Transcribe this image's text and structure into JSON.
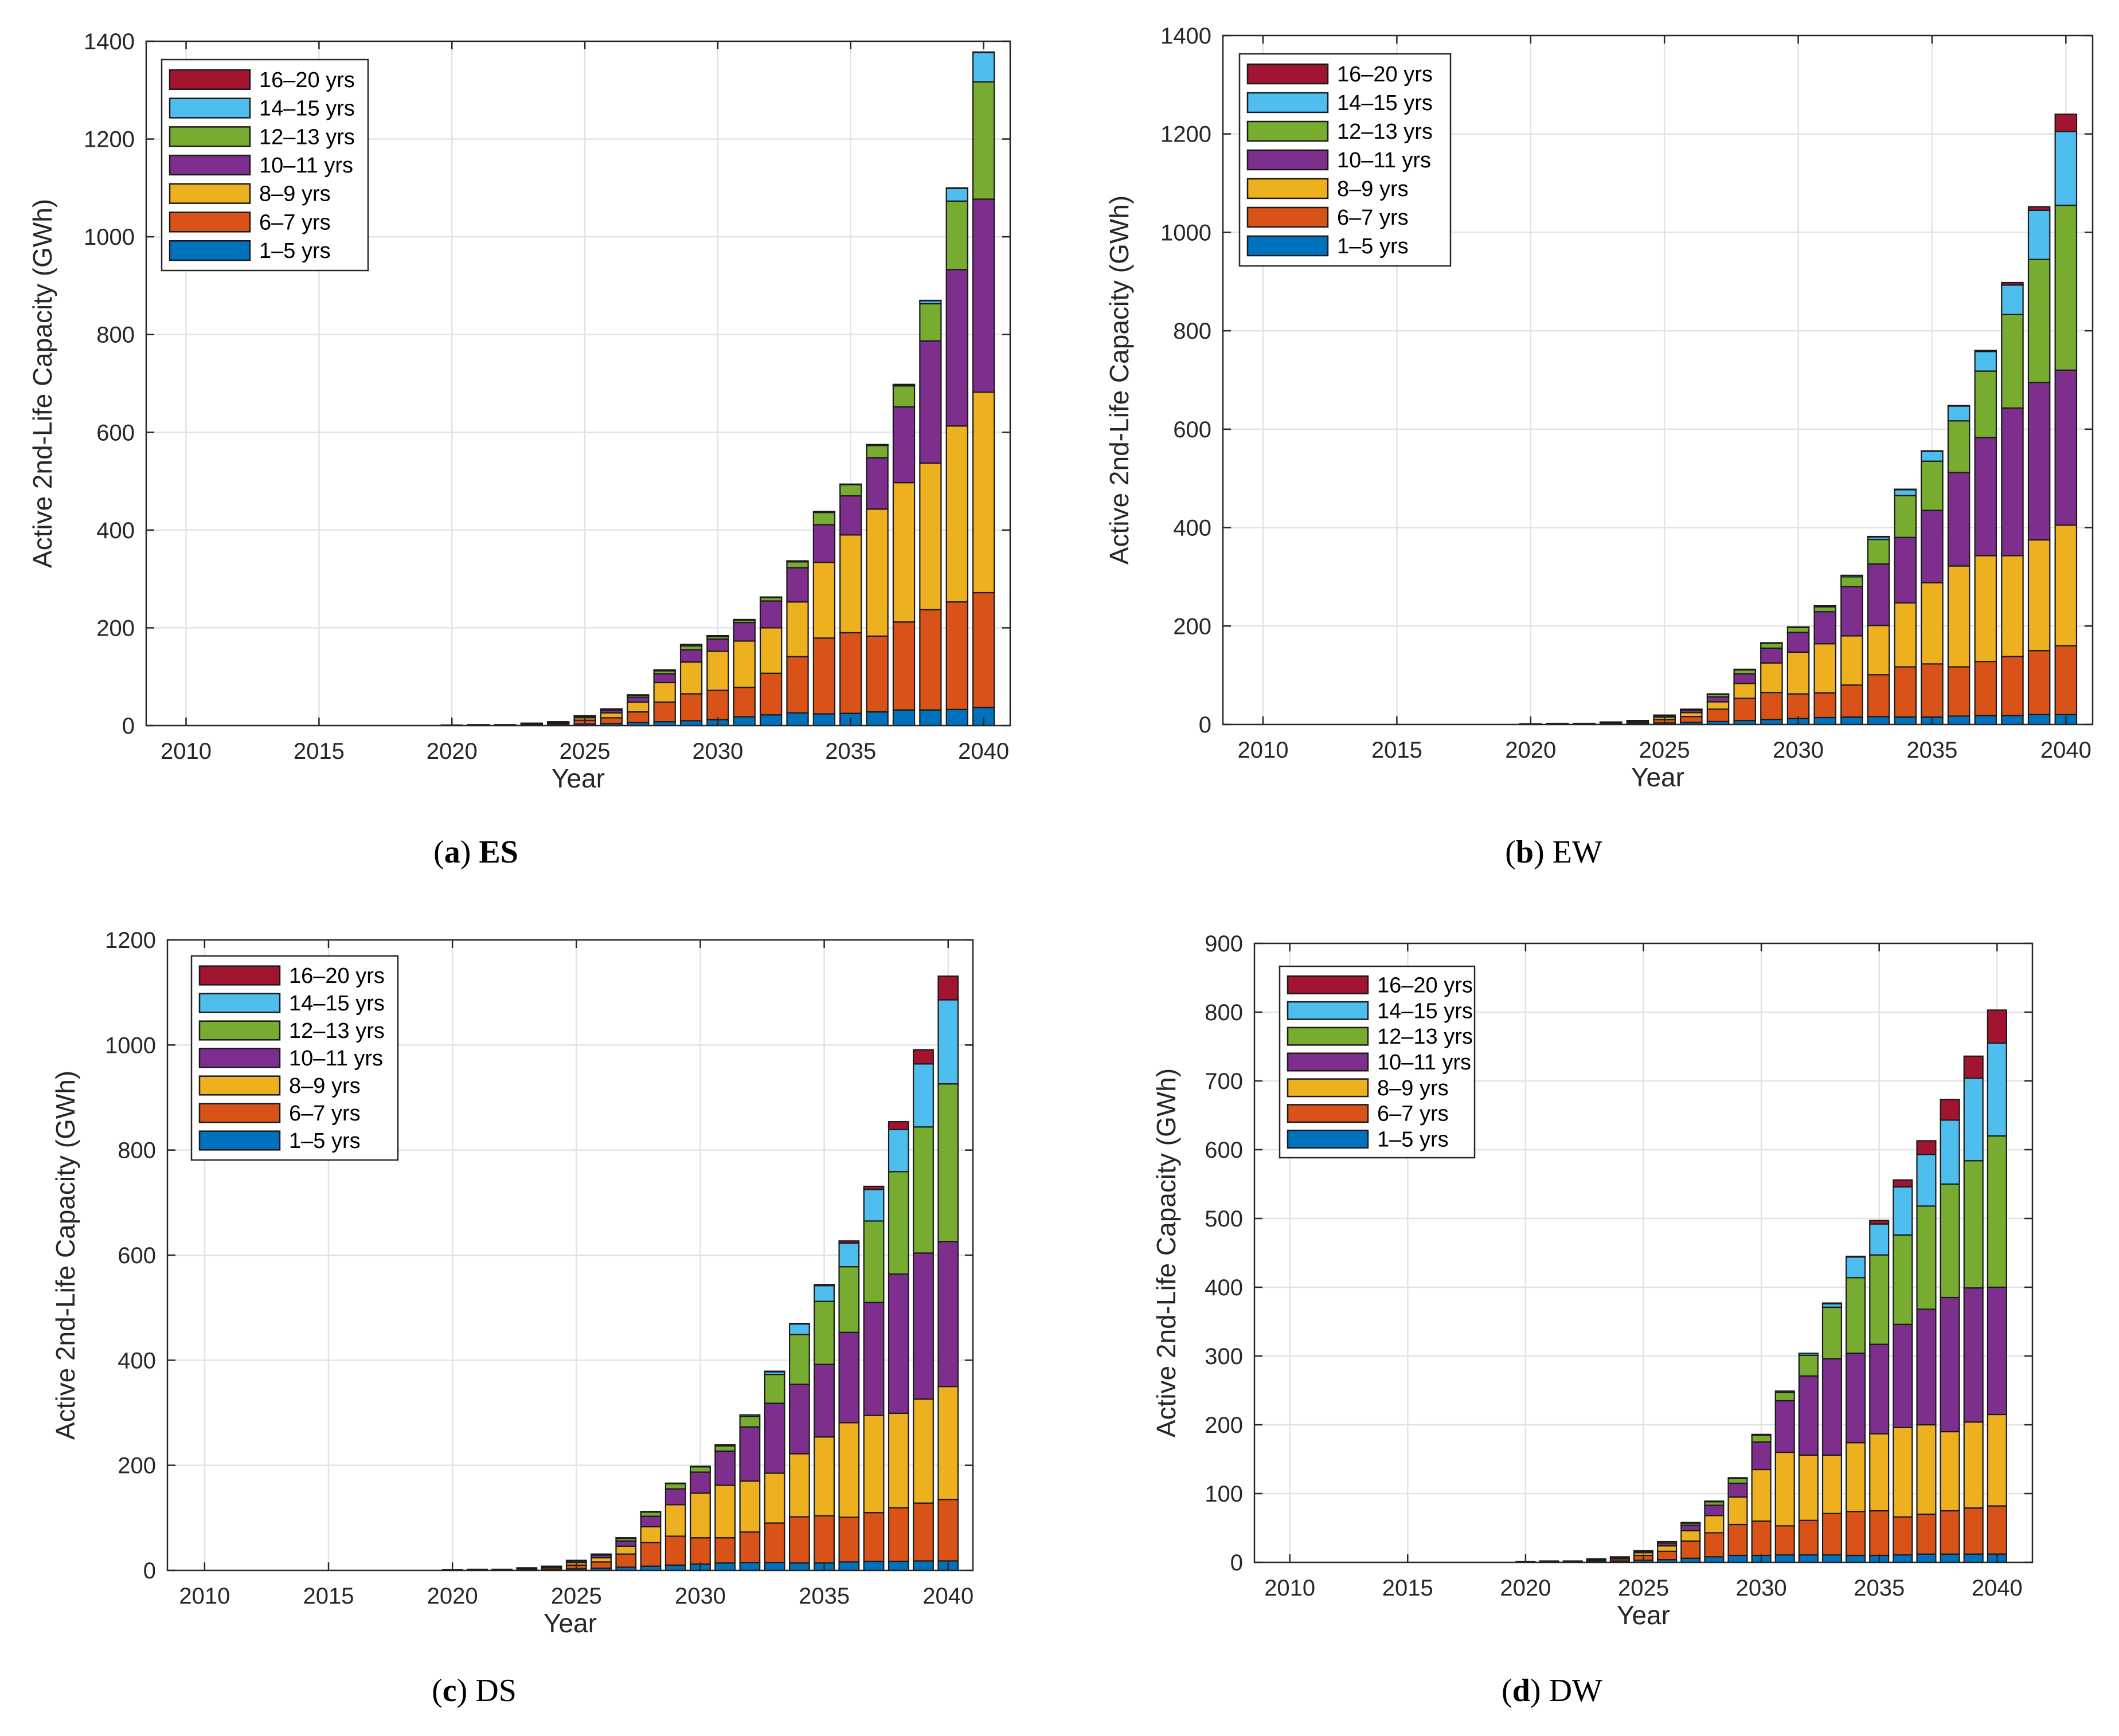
{
  "colors": {
    "s1": "#0072BD",
    "s2": "#D95319",
    "s3": "#EDB120",
    "s4": "#7E2F8E",
    "s5": "#77AC30",
    "s6": "#4DBEEE",
    "s7": "#A2142F"
  },
  "chart_data": [
    {
      "type": "bar",
      "stacked": true,
      "panel": "a",
      "caption_label": "a",
      "caption_name": "ES",
      "title": "",
      "xlabel": "Year",
      "ylabel": "Active 2nd-Life Capacity (GWh)",
      "xlim": [
        2008.5,
        2041
      ],
      "ylim": [
        0,
        1400
      ],
      "yticks": [
        0,
        200,
        400,
        600,
        800,
        1000,
        1200,
        1400
      ],
      "xticks": [
        2010,
        2015,
        2020,
        2025,
        2030,
        2035,
        2040
      ],
      "grid": true,
      "legend_position": "top-left",
      "legend": [
        "16–20 yrs",
        "14–15 yrs",
        "12–13 yrs",
        "10–11 yrs",
        "8–9 yrs",
        "6–7 yrs",
        "1–5 yrs"
      ],
      "categories": [
        2018,
        2019,
        2020,
        2021,
        2022,
        2023,
        2024,
        2025,
        2026,
        2027,
        2028,
        2029,
        2030,
        2031,
        2032,
        2033,
        2034,
        2035,
        2036,
        2037,
        2038,
        2039,
        2040
      ],
      "series": [
        {
          "name": "1–5 yrs",
          "color_key": "s1",
          "values": [
            0,
            0,
            1,
            1,
            1,
            2,
            2,
            3,
            4,
            6,
            8,
            10,
            12,
            18,
            22,
            26,
            24,
            25,
            28,
            32,
            32,
            33,
            37
          ]
        },
        {
          "name": "6–7 yrs",
          "color_key": "s2",
          "values": [
            0,
            0,
            0,
            1,
            1,
            2,
            3,
            8,
            12,
            22,
            40,
            55,
            60,
            60,
            85,
            115,
            155,
            165,
            155,
            180,
            205,
            220,
            235
          ]
        },
        {
          "name": "8–9 yrs",
          "color_key": "s3",
          "values": [
            0,
            0,
            0,
            0,
            0,
            1,
            2,
            5,
            10,
            20,
            40,
            65,
            80,
            95,
            93,
            112,
            155,
            200,
            260,
            285,
            300,
            360,
            410
          ]
        },
        {
          "name": "10–11 yrs",
          "color_key": "s4",
          "values": [
            0,
            0,
            0,
            0,
            0,
            0,
            1,
            3,
            6,
            10,
            18,
            25,
            25,
            38,
            55,
            70,
            77,
            80,
            105,
            155,
            250,
            320,
            395
          ]
        },
        {
          "name": "12–13 yrs",
          "color_key": "s5",
          "values": [
            0,
            0,
            0,
            0,
            0,
            0,
            0,
            1,
            2,
            4,
            6,
            8,
            5,
            5,
            7,
            12,
            25,
            23,
            25,
            43,
            76,
            140,
            240
          ]
        },
        {
          "name": "14–15 yrs",
          "color_key": "s6",
          "values": [
            0,
            0,
            0,
            0,
            0,
            0,
            0,
            0,
            0,
            1,
            2,
            3,
            2,
            1,
            1,
            2,
            2,
            1,
            1,
            2,
            6,
            26,
            60
          ]
        },
        {
          "name": "16–20 yrs",
          "color_key": "s7",
          "values": [
            0,
            0,
            0,
            0,
            0,
            0,
            0,
            0,
            0,
            0,
            0,
            0,
            0,
            0,
            0,
            0,
            0,
            0,
            1,
            1,
            1,
            1,
            1
          ]
        }
      ]
    },
    {
      "type": "bar",
      "stacked": true,
      "panel": "b",
      "caption_label": "b",
      "caption_name": "EW",
      "title": "",
      "xlabel": "Year",
      "ylabel": "Active 2nd-Life Capacity (GWh)",
      "xlim": [
        2008.5,
        2041
      ],
      "ylim": [
        0,
        1400
      ],
      "yticks": [
        0,
        200,
        400,
        600,
        800,
        1000,
        1200,
        1400
      ],
      "xticks": [
        2010,
        2015,
        2020,
        2025,
        2030,
        2035,
        2040
      ],
      "grid": true,
      "legend_position": "top-left",
      "legend": [
        "16–20 yrs",
        "14–15 yrs",
        "12–13 yrs",
        "10–11 yrs",
        "8–9 yrs",
        "6–7 yrs",
        "1–5 yrs"
      ],
      "categories": [
        2018,
        2019,
        2020,
        2021,
        2022,
        2023,
        2024,
        2025,
        2026,
        2027,
        2028,
        2029,
        2030,
        2031,
        2032,
        2033,
        2034,
        2035,
        2036,
        2037,
        2038,
        2039,
        2040
      ],
      "series": [
        {
          "name": "1–5 yrs",
          "color_key": "s1",
          "values": [
            0,
            0,
            1,
            1,
            1,
            2,
            2,
            3,
            4,
            6,
            8,
            10,
            12,
            14,
            15,
            16,
            15,
            15,
            17,
            18,
            18,
            20,
            20
          ]
        },
        {
          "name": "6–7 yrs",
          "color_key": "s2",
          "values": [
            0,
            0,
            0,
            1,
            1,
            2,
            3,
            7,
            12,
            25,
            45,
            55,
            50,
            50,
            65,
            85,
            102,
            108,
            100,
            110,
            120,
            130,
            140
          ]
        },
        {
          "name": "8–9 yrs",
          "color_key": "s3",
          "values": [
            0,
            0,
            0,
            0,
            0,
            1,
            2,
            5,
            8,
            15,
            30,
            60,
            85,
            100,
            100,
            100,
            130,
            165,
            205,
            215,
            205,
            225,
            245
          ]
        },
        {
          "name": "10–11 yrs",
          "color_key": "s4",
          "values": [
            0,
            0,
            0,
            0,
            0,
            0,
            1,
            3,
            5,
            10,
            20,
            30,
            40,
            65,
            100,
            125,
            133,
            147,
            190,
            240,
            300,
            320,
            315
          ]
        },
        {
          "name": "12–13 yrs",
          "color_key": "s5",
          "values": [
            0,
            0,
            0,
            0,
            0,
            0,
            0,
            1,
            2,
            5,
            8,
            10,
            10,
            10,
            20,
            50,
            85,
            100,
            105,
            135,
            190,
            250,
            335
          ]
        },
        {
          "name": "14–15 yrs",
          "color_key": "s6",
          "values": [
            0,
            0,
            0,
            0,
            0,
            0,
            0,
            0,
            0,
            1,
            1,
            1,
            1,
            2,
            3,
            5,
            12,
            20,
            30,
            40,
            60,
            100,
            150
          ]
        },
        {
          "name": "16–20 yrs",
          "color_key": "s7",
          "values": [
            0,
            0,
            0,
            0,
            0,
            0,
            0,
            0,
            0,
            0,
            0,
            0,
            0,
            0,
            0,
            1,
            1,
            1,
            1,
            2,
            5,
            7,
            35
          ]
        }
      ]
    },
    {
      "type": "bar",
      "stacked": true,
      "panel": "c",
      "caption_label": "c",
      "caption_name": "DS",
      "title": "",
      "xlabel": "Year",
      "ylabel": "Active 2nd-Life Capacity (GWh)",
      "xlim": [
        2008.5,
        2041
      ],
      "ylim": [
        0,
        1200
      ],
      "yticks": [
        0,
        200,
        400,
        600,
        800,
        1000,
        1200
      ],
      "xticks": [
        2010,
        2015,
        2020,
        2025,
        2030,
        2035,
        2040
      ],
      "grid": true,
      "legend_position": "top-left",
      "legend": [
        "16–20 yrs",
        "14–15 yrs",
        "12–13 yrs",
        "10–11 yrs",
        "8–9 yrs",
        "6–7 yrs",
        "1–5 yrs"
      ],
      "categories": [
        2018,
        2019,
        2020,
        2021,
        2022,
        2023,
        2024,
        2025,
        2026,
        2027,
        2028,
        2029,
        2030,
        2031,
        2032,
        2033,
        2034,
        2035,
        2036,
        2037,
        2038,
        2039,
        2040
      ],
      "series": [
        {
          "name": "1–5 yrs",
          "color_key": "s1",
          "values": [
            0,
            0,
            1,
            1,
            1,
            2,
            2,
            3,
            4,
            6,
            8,
            10,
            12,
            14,
            15,
            15,
            14,
            14,
            16,
            17,
            17,
            18,
            18
          ]
        },
        {
          "name": "6–7 yrs",
          "color_key": "s2",
          "values": [
            0,
            0,
            0,
            1,
            1,
            2,
            3,
            7,
            12,
            25,
            45,
            55,
            50,
            48,
            58,
            75,
            88,
            90,
            85,
            93,
            102,
            110,
            117
          ]
        },
        {
          "name": "8–9 yrs",
          "color_key": "s3",
          "values": [
            0,
            0,
            0,
            0,
            0,
            1,
            2,
            5,
            8,
            15,
            30,
            60,
            85,
            100,
            97,
            95,
            120,
            150,
            180,
            185,
            180,
            198,
            215
          ]
        },
        {
          "name": "10–11 yrs",
          "color_key": "s4",
          "values": [
            0,
            0,
            0,
            0,
            0,
            0,
            1,
            3,
            5,
            10,
            20,
            30,
            40,
            65,
            103,
            133,
            132,
            138,
            172,
            215,
            265,
            278,
            276
          ]
        },
        {
          "name": "12–13 yrs",
          "color_key": "s5",
          "values": [
            0,
            0,
            0,
            0,
            0,
            0,
            0,
            1,
            2,
            5,
            8,
            10,
            10,
            10,
            20,
            55,
            95,
            120,
            125,
            155,
            195,
            240,
            300
          ]
        },
        {
          "name": "14–15 yrs",
          "color_key": "s6",
          "values": [
            0,
            0,
            0,
            0,
            0,
            0,
            0,
            0,
            0,
            1,
            1,
            1,
            1,
            2,
            3,
            5,
            20,
            30,
            45,
            60,
            80,
            120,
            160
          ]
        },
        {
          "name": "16–20 yrs",
          "color_key": "s7",
          "values": [
            0,
            0,
            0,
            0,
            0,
            0,
            0,
            0,
            0,
            0,
            0,
            0,
            0,
            0,
            0,
            1,
            1,
            2,
            4,
            6,
            15,
            27,
            45
          ]
        }
      ]
    },
    {
      "type": "bar",
      "stacked": true,
      "panel": "d",
      "caption_label": "d",
      "caption_name": "DW",
      "title": "",
      "xlabel": "Year",
      "ylabel": "Active 2nd-Life Capacity (GWh)",
      "xlim": [
        2008.5,
        2041.5
      ],
      "ylim": [
        0,
        900
      ],
      "yticks": [
        0,
        100,
        200,
        300,
        400,
        500,
        600,
        700,
        800,
        900
      ],
      "xticks": [
        2010,
        2015,
        2020,
        2025,
        2030,
        2035,
        2040
      ],
      "grid": true,
      "legend_position": "top-left",
      "legend": [
        "16–20 yrs",
        "14–15 yrs",
        "12–13 yrs",
        "10–11 yrs",
        "8–9 yrs",
        "6–7 yrs",
        "1–5 yrs"
      ],
      "categories": [
        2018,
        2019,
        2020,
        2021,
        2022,
        2023,
        2024,
        2025,
        2026,
        2027,
        2028,
        2029,
        2030,
        2031,
        2032,
        2033,
        2034,
        2035,
        2036,
        2037,
        2038,
        2039,
        2040
      ],
      "series": [
        {
          "name": "1–5 yrs",
          "color_key": "s1",
          "values": [
            0,
            0,
            1,
            1,
            1,
            2,
            2,
            3,
            4,
            6,
            8,
            10,
            10,
            11,
            11,
            11,
            10,
            10,
            11,
            12,
            12,
            12,
            12
          ]
        },
        {
          "name": "6–7 yrs",
          "color_key": "s2",
          "values": [
            0,
            0,
            0,
            1,
            1,
            2,
            3,
            7,
            12,
            25,
            35,
            45,
            50,
            42,
            50,
            60,
            64,
            65,
            55,
            58,
            63,
            67,
            70
          ]
        },
        {
          "name": "8–9 yrs",
          "color_key": "s3",
          "values": [
            0,
            0,
            0,
            0,
            0,
            1,
            2,
            4,
            8,
            15,
            25,
            40,
            75,
            107,
            95,
            85,
            100,
            112,
            130,
            130,
            115,
            125,
            133
          ]
        },
        {
          "name": "10–11 yrs",
          "color_key": "s4",
          "values": [
            0,
            0,
            0,
            0,
            0,
            0,
            1,
            2,
            4,
            8,
            15,
            20,
            40,
            75,
            115,
            140,
            130,
            130,
            150,
            168,
            195,
            195,
            185
          ]
        },
        {
          "name": "12–13 yrs",
          "color_key": "s5",
          "values": [
            0,
            0,
            0,
            0,
            0,
            0,
            0,
            1,
            2,
            3,
            5,
            7,
            10,
            12,
            30,
            75,
            110,
            130,
            130,
            150,
            165,
            185,
            220
          ]
        },
        {
          "name": "14–15 yrs",
          "color_key": "s6",
          "values": [
            0,
            0,
            0,
            0,
            0,
            0,
            0,
            0,
            0,
            1,
            1,
            1,
            1,
            2,
            3,
            5,
            30,
            45,
            70,
            75,
            93,
            120,
            135
          ]
        },
        {
          "name": "16–20 yrs",
          "color_key": "s7",
          "values": [
            0,
            0,
            0,
            0,
            0,
            0,
            0,
            0,
            0,
            0,
            0,
            0,
            0,
            0,
            0,
            1,
            1,
            5,
            10,
            20,
            30,
            32,
            48
          ]
        }
      ]
    }
  ]
}
